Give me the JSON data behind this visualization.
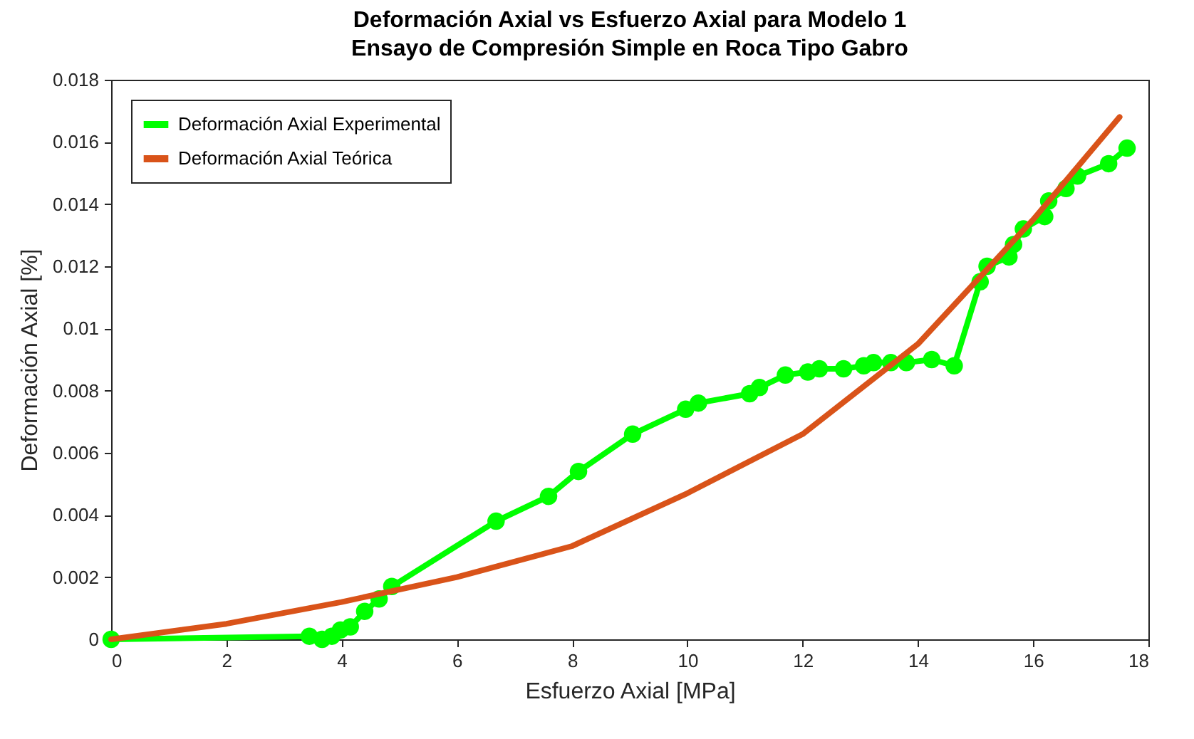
{
  "chart_data": {
    "type": "line",
    "title": "Deformación Axial vs Esfuerzo Axial para Modelo 1",
    "subtitle": "Ensayo de Compresión Simple en Roca Tipo Gabro",
    "xlabel": "Esfuerzo Axial [MPa]",
    "ylabel": "Deformación Axial [%]",
    "xlim": [
      0,
      18
    ],
    "xticks": [
      0,
      2,
      4,
      6,
      8,
      10,
      12,
      14,
      16,
      18
    ],
    "ylim": [
      0,
      0.018
    ],
    "yticks": [
      0,
      0.002,
      0.004,
      0.006,
      0.008,
      0.01,
      0.012,
      0.014,
      0.016,
      0.018
    ],
    "grid": false,
    "legend": "top left",
    "series": [
      {
        "name": "Deformación Axial Experimental",
        "color": "#00ff00",
        "marker": "circle",
        "x": [
          0,
          3.44,
          3.66,
          3.83,
          3.98,
          4.15,
          4.4,
          4.65,
          4.87,
          6.68,
          7.59,
          8.11,
          9.05,
          9.97,
          10.19,
          11.08,
          11.25,
          11.7,
          12.09,
          12.29,
          12.71,
          13.06,
          13.23,
          13.53,
          13.8,
          14.24,
          14.63,
          15.08,
          15.2,
          15.58,
          15.66,
          15.83,
          16.2,
          16.27,
          16.57,
          16.77,
          17.31,
          17.63
        ],
        "values": [
          0,
          0.0001,
          0,
          0.0001,
          0.0003,
          0.0004,
          0.0009,
          0.0013,
          0.0017,
          0.0038,
          0.0046,
          0.0054,
          0.0066,
          0.0074,
          0.0076,
          0.0079,
          0.0081,
          0.0085,
          0.0086,
          0.0087,
          0.0087,
          0.0088,
          0.0089,
          0.0089,
          0.0089,
          0.009,
          0.0088,
          0.0115,
          0.012,
          0.0123,
          0.0127,
          0.0132,
          0.0136,
          0.0141,
          0.0145,
          0.0149,
          0.0153,
          0.0158
        ]
      },
      {
        "name": "Deformación Axial Teórica",
        "color": "#d95319",
        "marker": "none",
        "x": [
          0,
          2,
          4,
          6,
          8,
          10,
          12,
          14,
          16,
          17.5
        ],
        "values": [
          0,
          0.0005,
          0.0012,
          0.002,
          0.003,
          0.0047,
          0.0066,
          0.0095,
          0.0135,
          0.0168
        ]
      }
    ]
  }
}
